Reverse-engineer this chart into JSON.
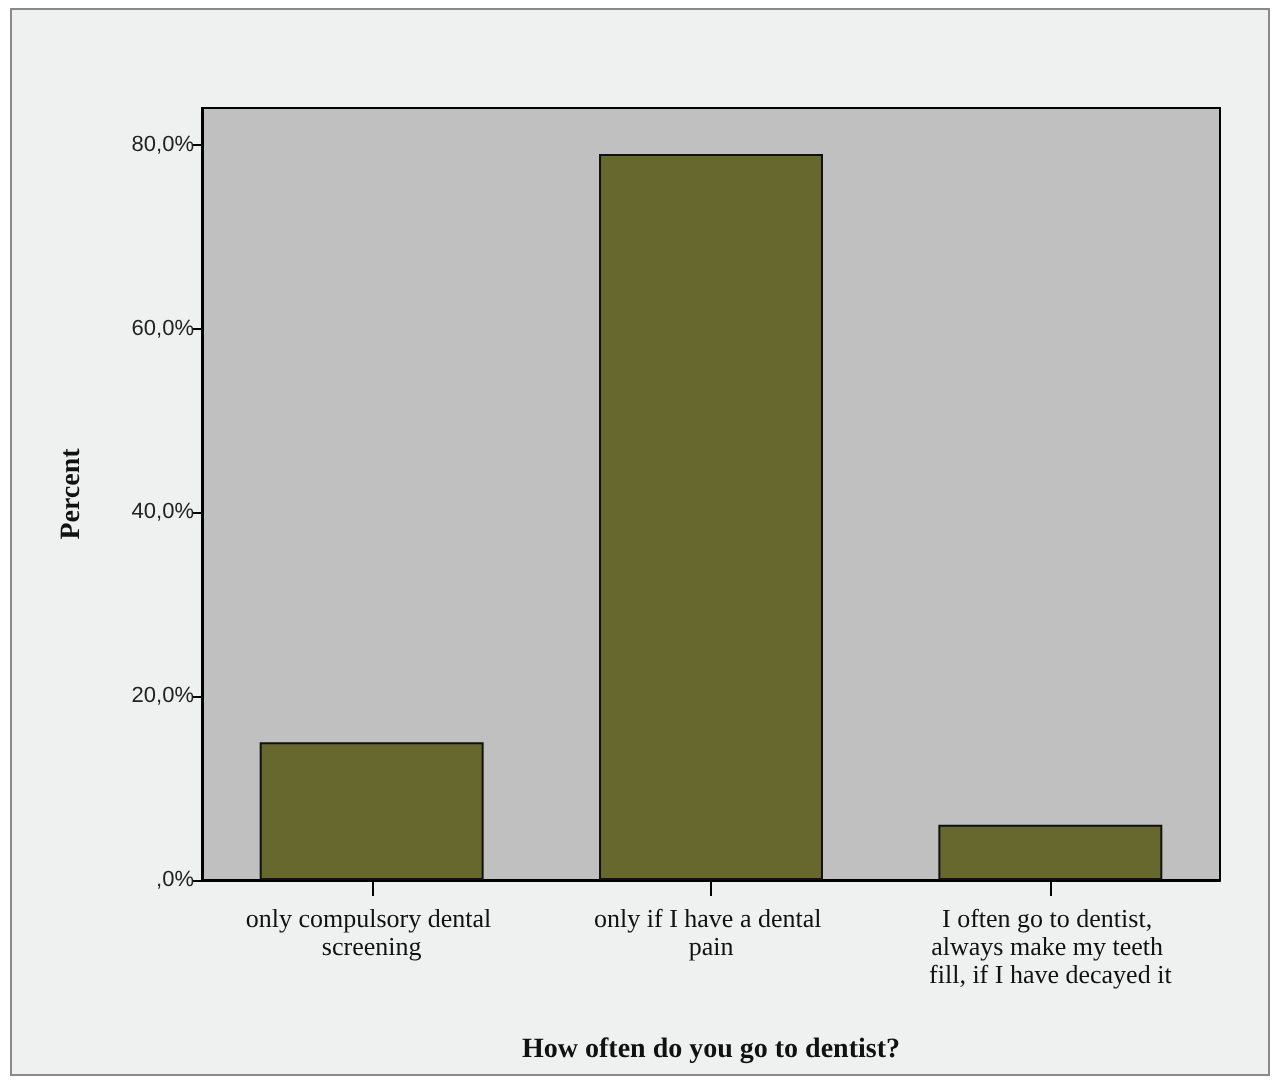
{
  "chart_data": {
    "type": "bar",
    "xlabel": "How often do you go to dentist?",
    "ylabel": "Percent",
    "categories": [
      "only compulsory dental screening",
      "only if I have a dental pain",
      "I often go to dentist, always make my teeth fill, if I have decayed it"
    ],
    "values": [
      15,
      79,
      6
    ],
    "color": "#66682e",
    "ylim": [
      0,
      84
    ],
    "yticks": [
      {
        "value": 0,
        "label": ",0%"
      },
      {
        "value": 20,
        "label": "20,0%"
      },
      {
        "value": 40,
        "label": "40,0%"
      },
      {
        "value": 60,
        "label": "60,0%"
      },
      {
        "value": 80,
        "label": "80,0%"
      }
    ]
  }
}
